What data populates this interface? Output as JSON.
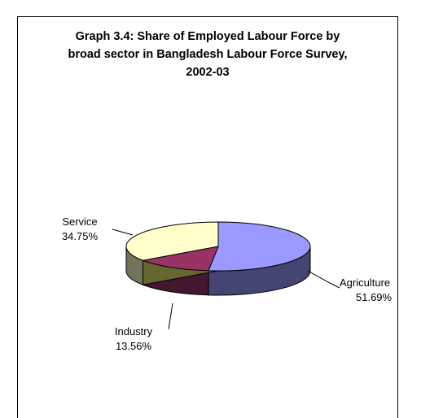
{
  "chart_data": {
    "type": "pie",
    "title_lines": [
      "Graph 3.4: Share of Employed Labour Force by",
      "broad sector in Bangladesh Labour Force Survey,",
      "2002-03"
    ],
    "slices": [
      {
        "label": "Agriculture",
        "value": 51.69,
        "value_text": "51.69%",
        "color": "#9999ff"
      },
      {
        "label": "Industry",
        "value": 13.56,
        "value_text": "13.56%",
        "color": "#993366"
      },
      {
        "label": "Service",
        "value": 34.75,
        "value_text": "34.75%",
        "color": "#ffffcc"
      }
    ],
    "legend": "none",
    "style": "3d-pie"
  }
}
